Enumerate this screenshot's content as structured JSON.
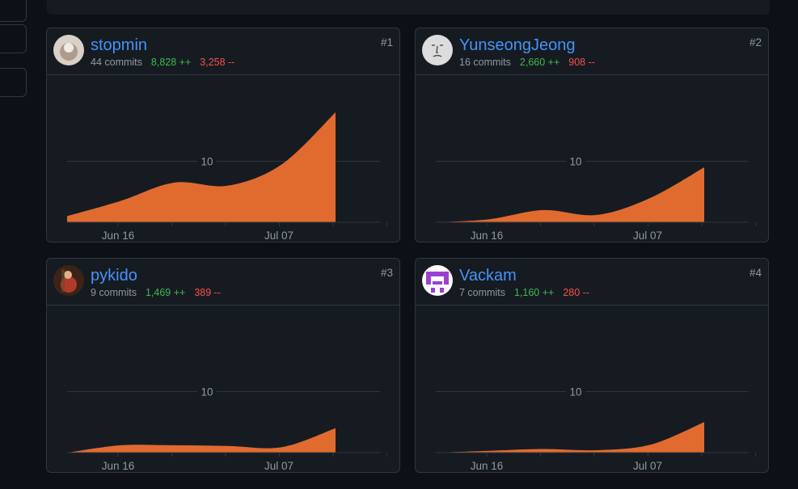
{
  "contributors": [
    {
      "name": "stopmin",
      "rank": "#1",
      "commits": "44 commits",
      "additions": "8,828 ++",
      "deletions": "3,258 --",
      "avatar_icon": "avatar-icon",
      "avatar_colors": [
        "#d9d0c8",
        "#8a6f5f"
      ],
      "chart_data": {
        "type": "area",
        "x": [
          "2024-06-07",
          "2024-06-14",
          "2024-06-21",
          "2024-06-28",
          "2024-07-05",
          "2024-07-12"
        ],
        "y": [
          1,
          3.5,
          6.5,
          6,
          9.5,
          18
        ],
        "ylim": [
          0,
          18
        ],
        "yticks": [
          10
        ],
        "xtick_labels": [
          "Jun 16",
          "Jul 07"
        ],
        "color": "#e16b2f"
      }
    },
    {
      "name": "YunseongJeong",
      "rank": "#2",
      "commits": "16 commits",
      "additions": "2,660 ++",
      "deletions": "908 --",
      "avatar_icon": "avatar-icon",
      "avatar_colors": [
        "#dcdcdc",
        "#555555"
      ],
      "chart_data": {
        "type": "area",
        "x": [
          "2024-06-07",
          "2024-06-14",
          "2024-06-21",
          "2024-06-28",
          "2024-07-05",
          "2024-07-12"
        ],
        "y": [
          0,
          0.5,
          2,
          1.2,
          4,
          9
        ],
        "ylim": [
          0,
          18
        ],
        "yticks": [
          10
        ],
        "xtick_labels": [
          "Jun 16",
          "Jul 07"
        ],
        "color": "#e16b2f"
      }
    },
    {
      "name": "pykido",
      "rank": "#3",
      "commits": "9 commits",
      "additions": "1,469 ++",
      "deletions": "389 --",
      "avatar_icon": "avatar-icon",
      "avatar_colors": [
        "#3b2417",
        "#b23a2a"
      ],
      "chart_data": {
        "type": "area",
        "x": [
          "2024-06-07",
          "2024-06-14",
          "2024-06-21",
          "2024-06-28",
          "2024-07-05",
          "2024-07-12"
        ],
        "y": [
          0,
          1.2,
          1.2,
          1.1,
          0.9,
          4
        ],
        "ylim": [
          0,
          18
        ],
        "yticks": [
          10
        ],
        "xtick_labels": [
          "Jun 16",
          "Jul 07"
        ],
        "color": "#e16b2f"
      }
    },
    {
      "name": "Vackam",
      "rank": "#4",
      "commits": "7 commits",
      "additions": "1,160 ++",
      "deletions": "280 --",
      "avatar_icon": "avatar-icon",
      "avatar_colors": [
        "#ffffff",
        "#9c3fd1"
      ],
      "chart_data": {
        "type": "area",
        "x": [
          "2024-06-07",
          "2024-06-14",
          "2024-06-21",
          "2024-06-28",
          "2024-07-05",
          "2024-07-12"
        ],
        "y": [
          0,
          0.3,
          0.6,
          0.4,
          1.3,
          5
        ],
        "ylim": [
          0,
          18
        ],
        "yticks": [
          10
        ],
        "xtick_labels": [
          "Jun 16",
          "Jul 07"
        ],
        "color": "#e16b2f"
      }
    }
  ]
}
